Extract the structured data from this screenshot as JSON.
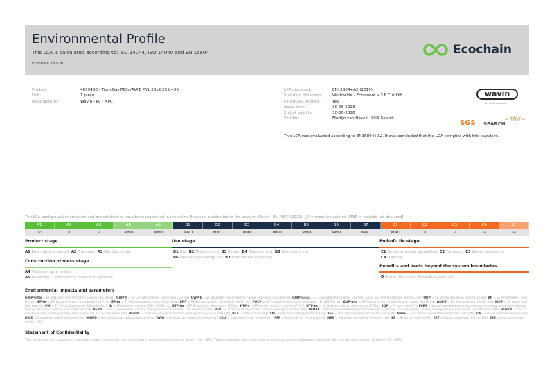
{
  "header": {
    "title": "Environmental Profile",
    "subtitle": "This LCA is calculated according to: ISO 14044, ISO 14040 and EN 15804",
    "version": "Ecochain v3.5.80",
    "logo": "Ecochain",
    "accent": "#6cc24a"
  },
  "product": [
    {
      "k": "Product:",
      "v": "4059480 - TigrisGas PEXc/Al/PE P.YL 20x2.25 L=50"
    },
    {
      "k": "Unit:",
      "v": "1 piece"
    },
    {
      "k": "Manufacturer:",
      "v": "Wavin - PL - MPC"
    }
  ],
  "lca": [
    {
      "k": "LCA standard:",
      "v": "EN15804+A2 (2019)"
    },
    {
      "k": "Standard database:",
      "v": "Worldwide - Ecoinvent v 3.6 Cut-Off"
    },
    {
      "k": "Externally verified:",
      "v": "Yes"
    },
    {
      "k": "Issue date:",
      "v": "30-06-2023"
    },
    {
      "k": "End of validity:",
      "v": "30-06-2028"
    },
    {
      "k": "Verifier:",
      "v": "Martijn van Hövell - SGS Search"
    }
  ],
  "logos": {
    "wavin": "wavin",
    "wavin_sub": "An Orbia business",
    "sgs": "SGS",
    "search": "SEARCH"
  },
  "conclusion": "This LCA was evaluated according to EN15804+A2. It was concluded that the LCA complies with this standard.",
  "registration": "The LCA background information and project dossier have been registered in the online Ecochain application in the account Wavin - PL - MPC (2021). [☑ = module declared, MND = module not declared].",
  "modules": [
    {
      "code": "A1",
      "status": "☑",
      "color": "#5cbf3a"
    },
    {
      "code": "A2",
      "status": "☑",
      "color": "#5cbf3a"
    },
    {
      "code": "A3",
      "status": "☑",
      "color": "#5cbf3a"
    },
    {
      "code": "A4",
      "status": "MND",
      "color": "#95d47e"
    },
    {
      "code": "A5",
      "status": "MND",
      "color": "#95d47e"
    },
    {
      "code": "B1",
      "status": "MND",
      "color": "#1b2e48"
    },
    {
      "code": "B2",
      "status": "MND",
      "color": "#1b2e48"
    },
    {
      "code": "B3",
      "status": "MND",
      "color": "#1b2e48"
    },
    {
      "code": "B4",
      "status": "MND",
      "color": "#1b2e48"
    },
    {
      "code": "B5",
      "status": "MND",
      "color": "#1b2e48"
    },
    {
      "code": "B6",
      "status": "MND",
      "color": "#1b2e48"
    },
    {
      "code": "B7",
      "status": "MND",
      "color": "#1b2e48"
    },
    {
      "code": "C1",
      "status": "MND",
      "color": "#f26a22"
    },
    {
      "code": "C2",
      "status": "☑",
      "color": "#f26a22"
    },
    {
      "code": "C3",
      "status": "☑",
      "color": "#f26a22"
    },
    {
      "code": "C4",
      "status": "☑",
      "color": "#f26a22"
    },
    {
      "code": "D",
      "status": "☑",
      "color": "#f7a170"
    }
  ],
  "stages": {
    "product": {
      "title": "Product stage",
      "items": [
        {
          "c": "A1",
          "t": "Raw material supply"
        },
        {
          "c": "A2",
          "t": "Transport"
        },
        {
          "c": "A3",
          "t": "Manufacturing"
        }
      ]
    },
    "construction": {
      "title": "Construction process stage",
      "items": [
        {
          "c": "A4",
          "t": "Transport gate to site"
        },
        {
          "c": "A5",
          "t": "Assembly / Construction installation process"
        }
      ]
    },
    "use": {
      "title": "Use stage",
      "items": [
        {
          "c": "B1",
          "t": "Use"
        },
        {
          "c": "B2",
          "t": "Maintenance"
        },
        {
          "c": "B3",
          "t": "Repair"
        },
        {
          "c": "B4",
          "t": "Replacement"
        },
        {
          "c": "B5",
          "t": "Refurbishment"
        },
        {
          "c": "B6",
          "t": "Operational energy use"
        },
        {
          "c": "B7",
          "t": "Operational water use"
        }
      ]
    },
    "eol": {
      "title": "End-of-Life stage",
      "items": [
        {
          "c": "C1",
          "t": "De-construction demolition"
        },
        {
          "c": "C2",
          "t": "Transport"
        },
        {
          "c": "C3",
          "t": "Waste processing"
        },
        {
          "c": "C4",
          "t": "Disposal"
        }
      ]
    },
    "beyond": {
      "title": "Benefits and loads beyond the system boundaries",
      "items": [
        {
          "c": "D",
          "t": "Reuse- Recovery- Recycling- potential"
        }
      ]
    }
  },
  "impacts_title": "Environmental impacts and parameters",
  "glossary": [
    {
      "a": "GWP-total",
      "d": "EF EN15804+A2 Climate Change [kg CO2 eq];"
    },
    {
      "a": "GWP-f",
      "d": "EF Climate change - Fossil [kg CO2 eq];"
    },
    {
      "a": "GWP-b",
      "d": "EF EN15804+A2 Climate Change - Biogenic [kg CO2 eq];"
    },
    {
      "a": "GWP-luluc",
      "d": "EF EN15804+A2 Climate Change - Land use and LU change [kg CO2 eq];"
    },
    {
      "a": "ODP",
      "d": "EF Ozone depletion [kg CFC11 eq];"
    },
    {
      "a": "AP",
      "d": "EF Acidification [mol H+ eq];"
    },
    {
      "a": "EP-fw",
      "d": "EF Eutrophication, freshwater [kg P eq];"
    },
    {
      "a": "EP-m",
      "d": "EF Eutrophication, marine [kg N eq];"
    },
    {
      "a": "EP-T",
      "d": "EF Eutrophication, terrestrial [mol N eq];"
    },
    {
      "a": "POCP",
      "d": "EF Photochemical ozone formation [kg NMVOC eq];"
    },
    {
      "a": "ADP-mm",
      "d": "EF Resource use, minerals and metals [kg Sb eq];"
    },
    {
      "a": "ADP-f",
      "d": "EF Resource use, fossils [MJ];"
    },
    {
      "a": "WDP",
      "d": "EF Water use [m3 depriv.];"
    },
    {
      "a": "PM",
      "d": "EF Particulate matter [disease inc.];"
    },
    {
      "a": "IR",
      "d": "EF Ionising radiation [kBq U-235 eq];"
    },
    {
      "a": "ETP-fw",
      "d": "EF Ecotoxicity, freshwater [CTUe];"
    },
    {
      "a": "HTP-c",
      "d": "EF Human toxicity, cancer [CTUh];"
    },
    {
      "a": "HTP-nc",
      "d": "EF Human toxicity, non-cancer [CTUh];"
    },
    {
      "a": "SQP",
      "d": "EF Land use [Pt];"
    },
    {
      "a": "PERE",
      "d": "Use of renewable primary energy excluding renewable primary energy resources used as raw materials [MJ];"
    },
    {
      "a": "PERM",
      "d": "Use of renewable primary energy resources used as raw materials [MJ];"
    },
    {
      "a": "PERT",
      "d": "Total use of renewable primary energy resources [MJ];"
    },
    {
      "a": "PENRE",
      "d": "Use of non-renewable primary energy excluding non-renewable primary energy resources used as raw materials [MJ];"
    },
    {
      "a": "PENRM",
      "d": "Use of non-renewable primary energy resources used as raw materials [MJ];"
    },
    {
      "a": "PENRT",
      "d": "Total use of non-renewable primary energy resources [MJ];"
    },
    {
      "a": "PET",
      "d": "Total energy [MJ];"
    },
    {
      "a": "SM",
      "d": "Use of secondary material [kg];"
    },
    {
      "a": "RSF",
      "d": "Use of renewable secondary fuels [MJ];"
    },
    {
      "a": "NRSF",
      "d": "Use of non-renewable secondary fuels [MJ];"
    },
    {
      "a": "FW",
      "d": "Use of net fresh water [m3];"
    },
    {
      "a": "HWD",
      "d": "Hazardous waste disposed [kg];"
    },
    {
      "a": "NHWD",
      "d": "Non-hazardous waste disposed [kg];"
    },
    {
      "a": "RWD",
      "d": "Radioactive waste disposed [kg];"
    },
    {
      "a": "CRU",
      "d": "Components for re-use [kg];"
    },
    {
      "a": "MFR",
      "d": "Materials for recycling [kg];"
    },
    {
      "a": "MER",
      "d": "Materials for energy recovery [kg];"
    },
    {
      "a": "EE",
      "d": "Exported energy [MJ];"
    },
    {
      "a": "EET",
      "d": "Exported energy thermic [MJ];"
    },
    {
      "a": "EEE",
      "d": "Exported energy electric [MJ]"
    }
  ],
  "confidentiality": {
    "title": "Statement of Confidentiality",
    "text": "This document and supporting material contain confidential and proprietary business information of Wavin - PL - MPC. These materials may be printed or (photo) copied or otherwise used only with the written consent of Wavin - PL - MPC."
  }
}
